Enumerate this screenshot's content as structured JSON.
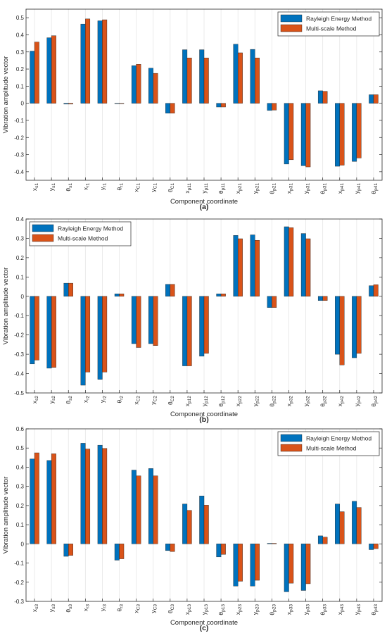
{
  "colors": {
    "series1": "#0072BD",
    "series2": "#D95319",
    "grid": "#e6e6e6",
    "axis": "#262626"
  },
  "chart_data": [
    {
      "type": "bar",
      "panel_label": "(a)",
      "xlabel": "Component coordinate",
      "ylabel": "Vibration amplitude vector",
      "ylim": [
        -0.45,
        0.55
      ],
      "yticks": [
        -0.4,
        -0.3,
        -0.2,
        -0.1,
        0,
        0.1,
        0.2,
        0.3,
        0.4,
        0.5
      ],
      "legend": "top-right",
      "grid": "vertical",
      "categories": [
        {
          "sym": "x",
          "sub": "s1"
        },
        {
          "sym": "y",
          "sub": "s1"
        },
        {
          "sym": "θ",
          "sub": "s1"
        },
        {
          "sym": "x",
          "sub": "r1"
        },
        {
          "sym": "y",
          "sub": "r1"
        },
        {
          "sym": "θ",
          "sub": "r1"
        },
        {
          "sym": "x",
          "sub": "C1"
        },
        {
          "sym": "y",
          "sub": "C1"
        },
        {
          "sym": "θ",
          "sub": "C1"
        },
        {
          "sym": "x",
          "sub": "p11"
        },
        {
          "sym": "y",
          "sub": "p11"
        },
        {
          "sym": "θ",
          "sub": "p11"
        },
        {
          "sym": "x",
          "sub": "p21"
        },
        {
          "sym": "y",
          "sub": "p21"
        },
        {
          "sym": "θ",
          "sub": "p21"
        },
        {
          "sym": "x",
          "sub": "p31"
        },
        {
          "sym": "y",
          "sub": "p31"
        },
        {
          "sym": "θ",
          "sub": "p31"
        },
        {
          "sym": "x",
          "sub": "p41"
        },
        {
          "sym": "y",
          "sub": "p41"
        },
        {
          "sym": "θ",
          "sub": "p41"
        }
      ],
      "series": [
        {
          "name": "Rayleigh Energy Method",
          "values": [
            0.305,
            0.383,
            -0.005,
            0.463,
            0.482,
            -0.003,
            0.22,
            0.205,
            -0.058,
            0.313,
            0.313,
            -0.022,
            0.345,
            0.315,
            -0.042,
            -0.355,
            -0.365,
            0.073,
            -0.368,
            -0.34,
            0.05
          ]
        },
        {
          "name": "Multi-scale Method",
          "values": [
            0.358,
            0.395,
            -0.005,
            0.493,
            0.488,
            -0.003,
            0.228,
            0.175,
            -0.058,
            0.265,
            0.265,
            -0.022,
            0.295,
            0.265,
            -0.04,
            -0.33,
            -0.372,
            0.07,
            -0.362,
            -0.32,
            0.05
          ]
        }
      ]
    },
    {
      "type": "bar",
      "panel_label": "(b)",
      "xlabel": "Component coordinate",
      "ylabel": "Vibration amplitude vector",
      "ylim": [
        -0.5,
        0.4
      ],
      "yticks": [
        -0.5,
        -0.4,
        -0.3,
        -0.2,
        -0.1,
        0,
        0.1,
        0.2,
        0.3,
        0.4
      ],
      "legend": "top-left",
      "grid": "vertical",
      "categories": [
        {
          "sym": "x",
          "sub": "s2"
        },
        {
          "sym": "y",
          "sub": "s2"
        },
        {
          "sym": "θ",
          "sub": "s2"
        },
        {
          "sym": "x",
          "sub": "r2"
        },
        {
          "sym": "y",
          "sub": "r2"
        },
        {
          "sym": "θ",
          "sub": "r2"
        },
        {
          "sym": "x",
          "sub": "C2"
        },
        {
          "sym": "y",
          "sub": "C2"
        },
        {
          "sym": "θ",
          "sub": "C2"
        },
        {
          "sym": "x",
          "sub": "p12"
        },
        {
          "sym": "y",
          "sub": "p12"
        },
        {
          "sym": "θ",
          "sub": "p12"
        },
        {
          "sym": "x",
          "sub": "p22"
        },
        {
          "sym": "y",
          "sub": "p22"
        },
        {
          "sym": "θ",
          "sub": "p22"
        },
        {
          "sym": "x",
          "sub": "p32"
        },
        {
          "sym": "y",
          "sub": "p32"
        },
        {
          "sym": "θ",
          "sub": "p32"
        },
        {
          "sym": "x",
          "sub": "p42"
        },
        {
          "sym": "y",
          "sub": "p42"
        },
        {
          "sym": "θ",
          "sub": "p42"
        }
      ],
      "series": [
        {
          "name": "Rayleigh Energy Method",
          "values": [
            -0.35,
            -0.372,
            0.068,
            -0.46,
            -0.43,
            0.013,
            -0.245,
            -0.245,
            0.062,
            -0.36,
            -0.31,
            0.013,
            0.315,
            0.318,
            -0.058,
            0.36,
            0.325,
            -0.022,
            -0.3,
            -0.318,
            0.055
          ]
        },
        {
          "name": "Multi-scale Method",
          "values": [
            -0.33,
            -0.368,
            0.068,
            -0.392,
            -0.392,
            0.013,
            -0.265,
            -0.255,
            0.062,
            -0.36,
            -0.295,
            0.013,
            0.298,
            0.29,
            -0.058,
            0.355,
            0.298,
            -0.022,
            -0.355,
            -0.295,
            0.06
          ]
        }
      ]
    },
    {
      "type": "bar",
      "panel_label": "(c)",
      "xlabel": "Component coordinate",
      "ylabel": "Vibration amplitude vector",
      "ylim": [
        -0.3,
        0.6
      ],
      "yticks": [
        -0.3,
        -0.2,
        -0.1,
        0,
        0.1,
        0.2,
        0.3,
        0.4,
        0.5,
        0.6
      ],
      "legend": "top-right",
      "grid": "vertical",
      "categories": [
        {
          "sym": "x",
          "sub": "s3"
        },
        {
          "sym": "y",
          "sub": "s3"
        },
        {
          "sym": "θ",
          "sub": "s3"
        },
        {
          "sym": "x",
          "sub": "r3"
        },
        {
          "sym": "y",
          "sub": "r3"
        },
        {
          "sym": "θ",
          "sub": "r3"
        },
        {
          "sym": "x",
          "sub": "C3"
        },
        {
          "sym": "y",
          "sub": "C3"
        },
        {
          "sym": "θ",
          "sub": "C3"
        },
        {
          "sym": "x",
          "sub": "p13"
        },
        {
          "sym": "y",
          "sub": "p13"
        },
        {
          "sym": "θ",
          "sub": "p13"
        },
        {
          "sym": "x",
          "sub": "p23"
        },
        {
          "sym": "y",
          "sub": "p23"
        },
        {
          "sym": "θ",
          "sub": "p23"
        },
        {
          "sym": "x",
          "sub": "p33"
        },
        {
          "sym": "y",
          "sub": "p33"
        },
        {
          "sym": "θ",
          "sub": "p33"
        },
        {
          "sym": "x",
          "sub": "p43"
        },
        {
          "sym": "y",
          "sub": "p43"
        },
        {
          "sym": "θ",
          "sub": "p43"
        }
      ],
      "series": [
        {
          "name": "Rayleigh Energy Method",
          "values": [
            0.443,
            0.435,
            -0.065,
            0.525,
            0.515,
            -0.085,
            0.385,
            0.393,
            -0.035,
            0.208,
            0.25,
            -0.068,
            -0.22,
            -0.22,
            0.003,
            -0.25,
            -0.243,
            0.042,
            0.208,
            0.222,
            -0.03
          ]
        },
        {
          "name": "Multi-scale Method",
          "values": [
            0.475,
            0.47,
            -0.06,
            0.495,
            0.498,
            -0.078,
            0.355,
            0.355,
            -0.04,
            0.175,
            0.202,
            -0.055,
            -0.195,
            -0.19,
            0.003,
            -0.205,
            -0.208,
            0.035,
            0.168,
            0.19,
            -0.025
          ]
        }
      ]
    }
  ]
}
